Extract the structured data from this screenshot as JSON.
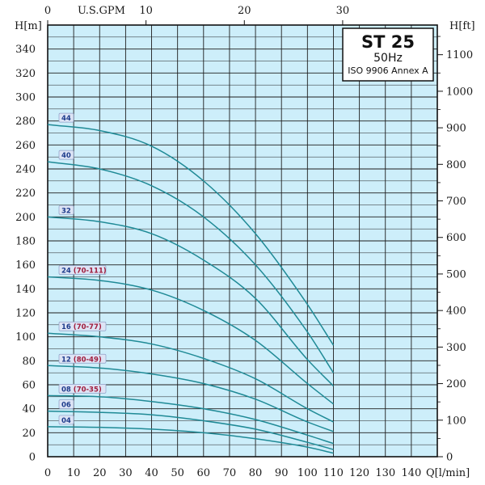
{
  "chart_data": {
    "type": "line",
    "title": "ST 25",
    "subtitle": "50Hz",
    "standard": "ISO 9906 Annex A",
    "xlabel_bottom": "Q[l/min]",
    "xlabel_top": "U.S.GPM",
    "ylabel_left": "H[m]",
    "ylabel_right": "H[ft]",
    "xlim": [
      0,
      150
    ],
    "ylim": [
      0,
      360
    ],
    "x_ticks": [
      0,
      10,
      20,
      30,
      40,
      50,
      60,
      70,
      80,
      90,
      100,
      110,
      120,
      130,
      140
    ],
    "y_ticks": [
      0,
      20,
      40,
      60,
      80,
      100,
      120,
      140,
      160,
      180,
      200,
      220,
      240,
      260,
      280,
      300,
      320,
      340
    ],
    "top_ticks": [
      0,
      10,
      20,
      30
    ],
    "right_ticks": [
      0,
      100,
      200,
      300,
      400,
      500,
      600,
      700,
      800,
      900,
      1000,
      1100
    ],
    "grid": true,
    "colors": {
      "background": "#cdeefa",
      "grid": "#1e1e1e",
      "curve": "#1f8a96",
      "label_bg": "#dde4f5",
      "label_blue": "#1e3c8c",
      "label_red": "#a01c3c"
    },
    "series": [
      {
        "label": "44",
        "range": "",
        "x": [
          0,
          20,
          40,
          60,
          80,
          100,
          110
        ],
        "y": [
          277,
          272,
          259,
          230,
          186,
          127,
          93
        ]
      },
      {
        "label": "40",
        "range": "",
        "x": [
          0,
          20,
          40,
          60,
          80,
          100,
          110
        ],
        "y": [
          246,
          240,
          226,
          200,
          160,
          104,
          70
        ]
      },
      {
        "label": "32",
        "range": "",
        "x": [
          0,
          20,
          40,
          60,
          80,
          100,
          110
        ],
        "y": [
          200,
          196,
          186,
          164,
          132,
          81,
          59
        ]
      },
      {
        "label": "24",
        "range": "(70-111)",
        "x": [
          0,
          20,
          40,
          60,
          80,
          100,
          110
        ],
        "y": [
          150,
          147,
          139,
          122,
          97,
          61,
          44
        ]
      },
      {
        "label": "16",
        "range": "(70-77)",
        "x": [
          0,
          20,
          40,
          60,
          80,
          100,
          110
        ],
        "y": [
          103,
          100,
          94,
          82,
          65,
          40,
          29
        ]
      },
      {
        "label": "12",
        "range": "(80-49)",
        "x": [
          0,
          20,
          40,
          60,
          80,
          100,
          110
        ],
        "y": [
          76,
          74,
          69,
          61,
          48,
          29,
          21
        ]
      },
      {
        "label": "08",
        "range": "(70-35)",
        "x": [
          0,
          20,
          40,
          60,
          80,
          100,
          110
        ],
        "y": [
          51,
          50,
          46,
          40,
          31,
          18,
          11
        ]
      },
      {
        "label": "06",
        "range": "",
        "x": [
          0,
          20,
          40,
          60,
          80,
          100,
          110
        ],
        "y": [
          38,
          37,
          35,
          30,
          23,
          12,
          6
        ]
      },
      {
        "label": "04",
        "range": "",
        "x": [
          0,
          20,
          40,
          60,
          80,
          100,
          110
        ],
        "y": [
          25,
          24.5,
          23,
          20,
          15,
          8,
          3
        ]
      }
    ]
  }
}
